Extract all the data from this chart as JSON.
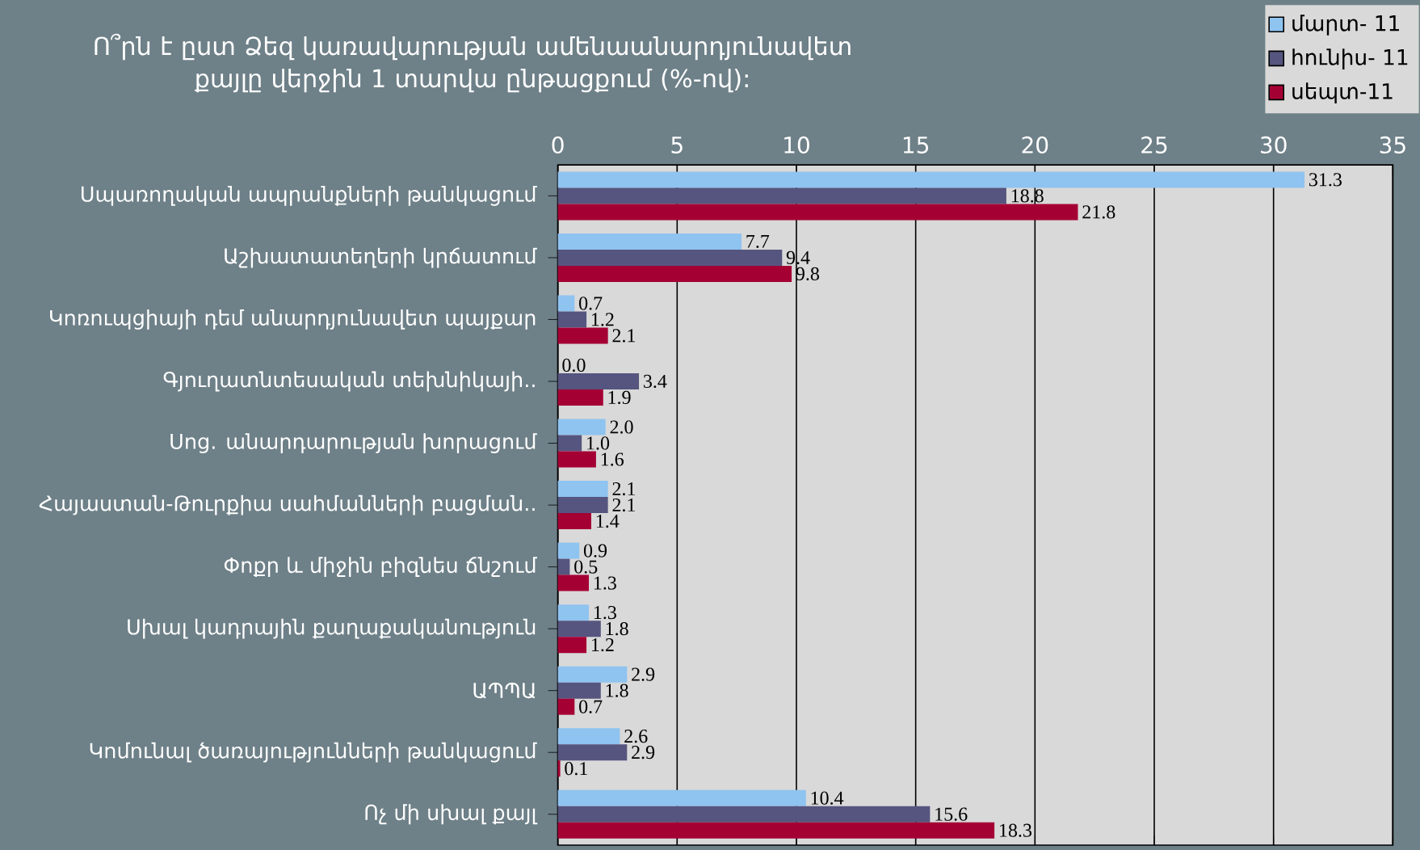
{
  "chart_data": {
    "type": "bar",
    "orientation": "horizontal",
    "title": "Ո՞րն է ըստ Ձեզ կառավարության ամենաանարդյունավետ քայլը վերջին 1 տարվա ընթացքում (%-ով):",
    "categories": [
      "Սպառողական ապրանքների թանկացում",
      "Աշխատատեղերի կրճատում",
      "Կոռուպցիայի դեմ անարդյունավետ պայքար",
      "Գյուղատնտեսական տեխնիկայի..",
      "Սոց. անարդարության խորացում",
      "Հայաստան-Թուրքիա սահմանների բացման..",
      "Փոքր և միջին բիզնես ճնշում",
      "Սխալ կադրային քաղաքականություն",
      "ԱՊՊԱ",
      "Կոմունալ ծառայությունների թանկացում",
      "Ոչ մի սխալ քայլ"
    ],
    "series": [
      {
        "name": "մարտ- 11",
        "color": "#8fc3f0",
        "values": [
          31.3,
          7.7,
          0.7,
          0.0,
          2.0,
          2.1,
          0.9,
          1.3,
          2.9,
          2.6,
          10.4
        ],
        "value_labels": [
          "31.3",
          "7.7",
          "0.7",
          "0.0",
          "2.0",
          "2.1",
          "0.9",
          "1.3",
          "2.9",
          "2.6",
          "10.4"
        ]
      },
      {
        "name": "հունիս- 11",
        "color": "#55557f",
        "values": [
          18.8,
          9.4,
          1.2,
          3.4,
          1.0,
          2.1,
          0.5,
          1.8,
          1.8,
          2.9,
          15.6
        ],
        "value_labels": [
          "18.8",
          "9.4",
          "1.2",
          "3.4",
          "1.0",
          "2.1",
          "0.5",
          "1.8",
          "1.8",
          "2.9",
          "15.6"
        ]
      },
      {
        "name": "սեպտ-11",
        "color": "#a50034",
        "values": [
          21.8,
          9.8,
          2.1,
          1.9,
          1.6,
          1.4,
          1.3,
          1.2,
          0.7,
          0.1,
          18.3
        ],
        "value_labels": [
          "21.8",
          "9.8",
          "2.1",
          "1.9",
          "1.6",
          "1.4",
          "1.3",
          "1.2",
          "0.7",
          "0.1",
          "18.3"
        ]
      }
    ],
    "xlim": [
      0,
      35
    ],
    "xticks": [
      0,
      5,
      10,
      15,
      20,
      25,
      30,
      35
    ],
    "grid": "x",
    "legend": "top right"
  }
}
